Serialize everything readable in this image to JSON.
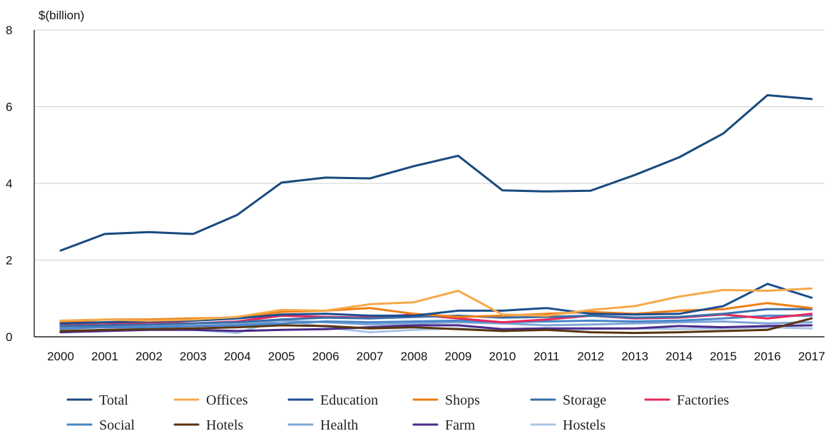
{
  "chart_data": {
    "type": "line",
    "ylabel": "$(billion)",
    "xlabel": "",
    "title": "",
    "ylim": [
      0,
      8
    ],
    "yticks": [
      0,
      2,
      4,
      6,
      8
    ],
    "grid": true,
    "legend_position": "bottom",
    "x": [
      "2000",
      "2001",
      "2002",
      "2003",
      "2004",
      "2005",
      "2006",
      "2007",
      "2008",
      "2009",
      "2010",
      "2011",
      "2012",
      "2013",
      "2014",
      "2015",
      "2016",
      "2017"
    ],
    "series": [
      {
        "name": "Total",
        "color": "#1a4a7e",
        "values": [
          2.25,
          2.68,
          2.73,
          2.68,
          3.18,
          4.02,
          4.15,
          4.13,
          4.45,
          4.72,
          3.82,
          3.79,
          3.81,
          4.22,
          4.68,
          5.3,
          6.3,
          6.2
        ]
      },
      {
        "name": "Offices",
        "color": "#f5a94a",
        "values": [
          0.42,
          0.45,
          0.42,
          0.45,
          0.52,
          0.7,
          0.68,
          0.85,
          0.9,
          1.2,
          0.58,
          0.55,
          0.7,
          0.8,
          1.05,
          1.22,
          1.2,
          1.26
        ]
      },
      {
        "name": "Education",
        "color": "#1d4e8f",
        "values": [
          0.35,
          0.38,
          0.4,
          0.42,
          0.48,
          0.58,
          0.6,
          0.55,
          0.55,
          0.68,
          0.68,
          0.75,
          0.6,
          0.58,
          0.6,
          0.8,
          1.38,
          1.02
        ]
      },
      {
        "name": "Shops",
        "color": "#ef7d13",
        "values": [
          0.38,
          0.45,
          0.45,
          0.48,
          0.5,
          0.65,
          0.68,
          0.75,
          0.6,
          0.52,
          0.55,
          0.6,
          0.65,
          0.6,
          0.68,
          0.72,
          0.88,
          0.75
        ]
      },
      {
        "name": "Storage",
        "color": "#3a6fa8",
        "values": [
          0.28,
          0.3,
          0.32,
          0.35,
          0.38,
          0.45,
          0.5,
          0.48,
          0.52,
          0.55,
          0.5,
          0.52,
          0.55,
          0.5,
          0.52,
          0.6,
          0.72,
          0.72
        ]
      },
      {
        "name": "Factories",
        "color": "#e8285b",
        "values": [
          0.3,
          0.32,
          0.38,
          0.35,
          0.4,
          0.55,
          0.52,
          0.5,
          0.58,
          0.48,
          0.38,
          0.45,
          0.55,
          0.48,
          0.5,
          0.58,
          0.48,
          0.6
        ]
      },
      {
        "name": "Social",
        "color": "#4a86c8",
        "values": [
          0.22,
          0.25,
          0.25,
          0.28,
          0.3,
          0.35,
          0.4,
          0.38,
          0.4,
          0.42,
          0.38,
          0.4,
          0.42,
          0.4,
          0.42,
          0.48,
          0.55,
          0.55
        ]
      },
      {
        "name": "Hotels",
        "color": "#5a3510",
        "values": [
          0.15,
          0.18,
          0.2,
          0.22,
          0.25,
          0.3,
          0.28,
          0.22,
          0.25,
          0.2,
          0.15,
          0.18,
          0.12,
          0.1,
          0.12,
          0.15,
          0.18,
          0.48
        ]
      },
      {
        "name": "Health",
        "color": "#7fa6d6",
        "values": [
          0.25,
          0.28,
          0.3,
          0.28,
          0.32,
          0.42,
          0.38,
          0.32,
          0.35,
          0.38,
          0.35,
          0.3,
          0.32,
          0.35,
          0.38,
          0.4,
          0.35,
          0.38
        ]
      },
      {
        "name": "Farm",
        "color": "#4a2a8a",
        "values": [
          0.12,
          0.15,
          0.18,
          0.18,
          0.15,
          0.18,
          0.2,
          0.25,
          0.3,
          0.3,
          0.2,
          0.22,
          0.22,
          0.22,
          0.28,
          0.25,
          0.28,
          0.3
        ]
      },
      {
        "name": "Hostels",
        "color": "#a9c4e4",
        "values": [
          0.18,
          0.15,
          0.2,
          0.18,
          0.1,
          0.45,
          0.25,
          0.12,
          0.18,
          0.22,
          0.15,
          0.18,
          0.2,
          0.22,
          0.2,
          0.22,
          0.25,
          0.22
        ]
      }
    ]
  }
}
